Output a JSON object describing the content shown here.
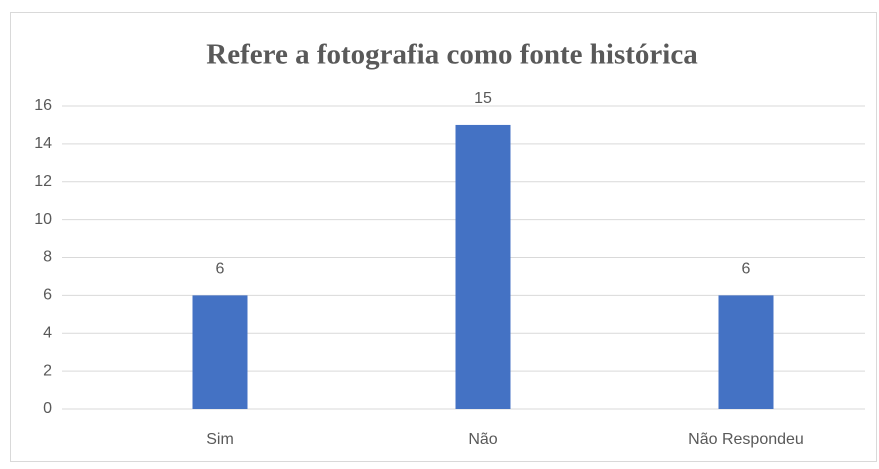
{
  "chart_data": {
    "type": "bar",
    "title": "Refere a fotografia como fonte histórica",
    "categories": [
      "Sim",
      "Não",
      "Não Respondeu"
    ],
    "values": [
      6,
      15,
      6
    ],
    "color": "#4472c4",
    "ylim": [
      0,
      16
    ],
    "yticks": [
      0,
      2,
      4,
      6,
      8,
      10,
      12,
      14,
      16
    ],
    "grid": true
  }
}
